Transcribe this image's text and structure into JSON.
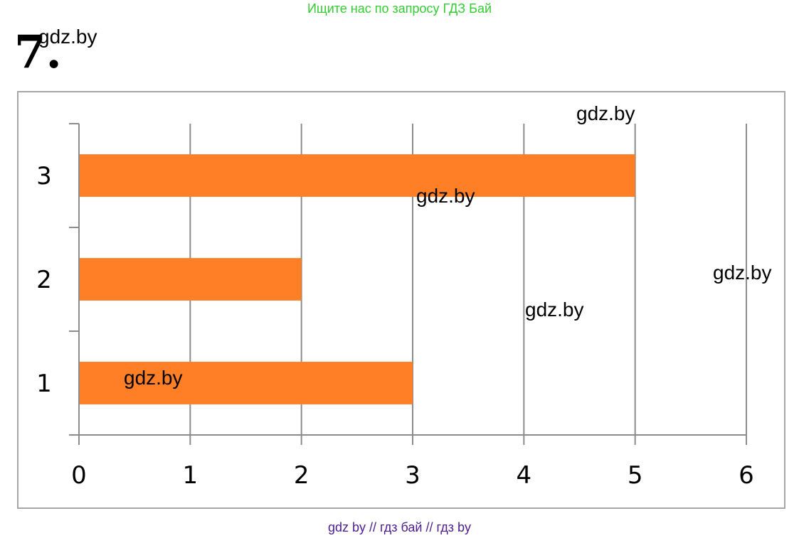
{
  "banner": {
    "text": "Ищите нас по запросу ГДЗ Бай",
    "color": "#33cc33"
  },
  "task": {
    "number": "7."
  },
  "watermarks": [
    "gdz.by",
    "gdz.by",
    "gdz.by",
    "gdz.by",
    "gdz.by",
    "gdz.by"
  ],
  "footer": {
    "text": "gdz by  //  гдз бай  //  гдз by",
    "color": "#4b1d8c"
  },
  "chart_data": {
    "type": "bar",
    "orientation": "horizontal",
    "categories": [
      "1",
      "2",
      "3"
    ],
    "values": [
      3,
      2,
      5
    ],
    "xticks": [
      "0",
      "1",
      "2",
      "3",
      "4",
      "5",
      "6"
    ],
    "xlim": [
      0,
      6
    ],
    "title": "",
    "xlabel": "",
    "ylabel": "",
    "grid": true,
    "bar_color": "#ff7f27",
    "grid_color": "#8c8c8c"
  }
}
